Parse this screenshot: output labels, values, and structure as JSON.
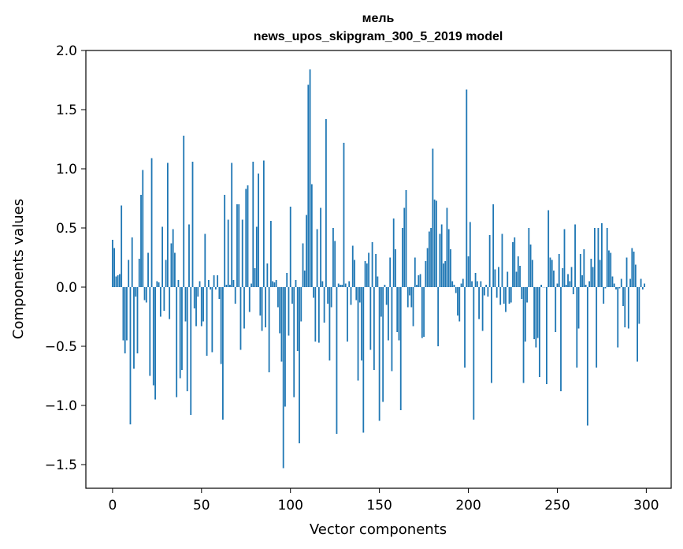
{
  "chart_data": {
    "type": "bar",
    "title_line1": "мель",
    "title_line2": "news_upos_skipgram_300_5_2019 model",
    "xlabel": "Vector components",
    "ylabel": "Components values",
    "xlim": [
      -15,
      314
    ],
    "ylim": [
      -1.7,
      2.0
    ],
    "xticks": [
      0,
      50,
      100,
      150,
      200,
      250,
      300
    ],
    "xtick_labels": [
      "0",
      "50",
      "100",
      "150",
      "200",
      "250",
      "300"
    ],
    "yticks": [
      -1.5,
      -1.0,
      -0.5,
      0.0,
      0.5,
      1.0,
      1.5,
      2.0
    ],
    "ytick_labels": [
      "−1.5",
      "−1.0",
      "−0.5",
      "0.0",
      "0.5",
      "1.0",
      "1.5",
      "2.0"
    ],
    "bar_color": "#1f77b4",
    "values": [
      0.4,
      0.33,
      0.09,
      0.1,
      0.11,
      0.69,
      -0.45,
      -0.56,
      -0.45,
      0.23,
      -1.16,
      0.42,
      -0.69,
      -0.08,
      -0.56,
      0.24,
      0.78,
      0.99,
      -0.11,
      -0.13,
      0.29,
      -0.75,
      1.09,
      -0.83,
      -0.95,
      0.05,
      0.04,
      -0.25,
      0.51,
      -0.2,
      0.23,
      1.05,
      -0.27,
      0.37,
      0.49,
      0.29,
      -0.93,
      0.06,
      -0.77,
      -0.7,
      1.28,
      -0.29,
      -0.88,
      0.53,
      -1.08,
      1.06,
      -0.18,
      -0.33,
      -0.08,
      0.05,
      -0.33,
      -0.29,
      0.45,
      -0.58,
      0.06,
      -0.02,
      -0.55,
      0.1,
      -0.02,
      0.1,
      -0.1,
      -0.65,
      -1.12,
      0.78,
      0.02,
      0.57,
      0.02,
      1.05,
      0.06,
      -0.14,
      0.7,
      0.7,
      -0.53,
      0.57,
      -0.35,
      0.83,
      0.86,
      -0.21,
      0.03,
      1.06,
      0.16,
      0.51,
      0.96,
      -0.24,
      -0.37,
      1.07,
      -0.34,
      0.2,
      -0.72,
      0.56,
      0.05,
      0.04,
      0.06,
      -0.17,
      -0.39,
      -0.63,
      -1.53,
      -1.01,
      0.12,
      -0.41,
      0.68,
      -0.14,
      -0.93,
      0.06,
      -0.54,
      -1.32,
      -0.29,
      0.37,
      0.14,
      0.61,
      1.71,
      1.84,
      0.87,
      -0.09,
      -0.46,
      0.49,
      -0.47,
      0.67,
      0.05,
      -0.3,
      1.42,
      -0.14,
      -0.62,
      -0.17,
      0.5,
      0.39,
      -1.24,
      0.03,
      0.02,
      0.02,
      1.22,
      0.03,
      -0.46,
      0.05,
      -0.15,
      0.35,
      0.23,
      -0.11,
      -0.79,
      -0.13,
      -0.62,
      -1.23,
      0.22,
      0.2,
      0.29,
      -0.53,
      0.38,
      -0.7,
      0.28,
      0.09,
      -1.13,
      -0.25,
      -0.97,
      0.02,
      -0.15,
      -0.45,
      0.25,
      -0.71,
      0.58,
      0.32,
      -0.38,
      -0.45,
      -1.04,
      0.5,
      0.67,
      0.82,
      -0.17,
      -0.07,
      -0.17,
      -0.33,
      0.25,
      0.02,
      0.1,
      0.11,
      -0.43,
      -0.42,
      0.22,
      0.33,
      0.47,
      0.5,
      1.17,
      0.74,
      0.73,
      -0.5,
      0.45,
      0.53,
      0.2,
      0.22,
      0.67,
      0.49,
      0.32,
      0.05,
      0.02,
      -0.05,
      -0.24,
      -0.29,
      0.03,
      0.07,
      -0.68,
      1.67,
      0.26,
      0.55,
      0.05,
      -1.12,
      0.12,
      0.05,
      -0.27,
      0.05,
      -0.37,
      -0.07,
      0.02,
      -0.08,
      0.44,
      -0.81,
      0.7,
      0.15,
      -0.09,
      0.17,
      -0.15,
      0.45,
      -0.14,
      -0.21,
      0.13,
      -0.14,
      -0.13,
      0.38,
      0.42,
      0.13,
      0.26,
      0.18,
      -0.1,
      -0.81,
      -0.46,
      -0.13,
      0.5,
      0.36,
      0.23,
      -0.44,
      -0.51,
      -0.43,
      -0.76,
      0.02,
      0.0,
      0.0,
      -0.82,
      0.65,
      0.25,
      0.23,
      0.14,
      -0.38,
      0.03,
      0.28,
      -0.88,
      0.16,
      0.49,
      0.02,
      0.11,
      0.05,
      0.17,
      -0.06,
      0.53,
      -0.68,
      -0.35,
      0.28,
      0.1,
      0.32,
      0.02,
      -1.17,
      0.05,
      0.24,
      0.17,
      0.5,
      -0.68,
      0.5,
      0.23,
      0.54,
      -0.14,
      -0.01,
      0.5,
      0.31,
      0.29,
      0.09,
      0.03,
      -0.02,
      -0.51,
      -0.01,
      0.07,
      -0.16,
      -0.34,
      0.25,
      -0.35,
      0.07,
      0.33,
      0.3,
      0.19,
      -0.63,
      -0.31,
      0.07,
      -0.02,
      0.03
    ]
  }
}
